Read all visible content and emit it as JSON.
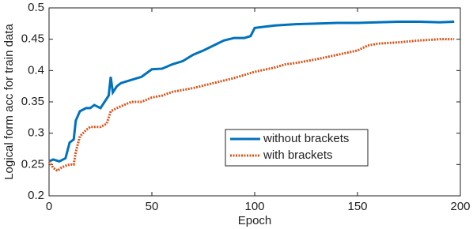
{
  "chart_data": {
    "type": "line",
    "xlabel": "Epoch",
    "ylabel": "Logical form acc for train data",
    "xlim": [
      0,
      200
    ],
    "ylim": [
      0.2,
      0.5
    ],
    "xticks": [
      0,
      50,
      100,
      150,
      200
    ],
    "yticks": [
      0.2,
      0.25,
      0.3,
      0.35,
      0.4,
      0.45,
      0.5
    ],
    "grid": false,
    "legend": "lower-center",
    "series": [
      {
        "name": "without brackets",
        "color": "#0072bd",
        "style": "solid",
        "x": [
          0,
          2,
          5,
          8,
          10,
          12,
          13,
          15,
          18,
          20,
          22,
          25,
          27,
          29,
          30,
          31,
          33,
          35,
          40,
          45,
          50,
          55,
          60,
          65,
          70,
          75,
          80,
          85,
          90,
          95,
          98,
          100,
          105,
          110,
          120,
          130,
          140,
          150,
          160,
          170,
          180,
          190,
          197
        ],
        "values": [
          0.255,
          0.258,
          0.255,
          0.26,
          0.285,
          0.29,
          0.32,
          0.335,
          0.34,
          0.34,
          0.345,
          0.34,
          0.35,
          0.36,
          0.39,
          0.365,
          0.375,
          0.38,
          0.385,
          0.39,
          0.402,
          0.403,
          0.41,
          0.415,
          0.425,
          0.432,
          0.44,
          0.448,
          0.452,
          0.452,
          0.455,
          0.468,
          0.47,
          0.472,
          0.474,
          0.475,
          0.476,
          0.476,
          0.477,
          0.478,
          0.478,
          0.477,
          0.478
        ]
      },
      {
        "name": "with brackets",
        "color": "#d95319",
        "style": "dotted",
        "x": [
          0,
          2,
          4,
          6,
          8,
          10,
          12,
          13,
          15,
          18,
          20,
          25,
          28,
          30,
          33,
          35,
          40,
          45,
          50,
          55,
          60,
          70,
          80,
          90,
          100,
          110,
          115,
          120,
          130,
          140,
          150,
          155,
          160,
          170,
          180,
          190,
          197
        ],
        "values": [
          0.255,
          0.245,
          0.24,
          0.245,
          0.248,
          0.25,
          0.25,
          0.27,
          0.295,
          0.305,
          0.31,
          0.31,
          0.315,
          0.335,
          0.34,
          0.343,
          0.35,
          0.35,
          0.357,
          0.36,
          0.366,
          0.372,
          0.38,
          0.388,
          0.398,
          0.405,
          0.41,
          0.412,
          0.418,
          0.425,
          0.432,
          0.44,
          0.443,
          0.445,
          0.448,
          0.45,
          0.45
        ]
      }
    ]
  }
}
